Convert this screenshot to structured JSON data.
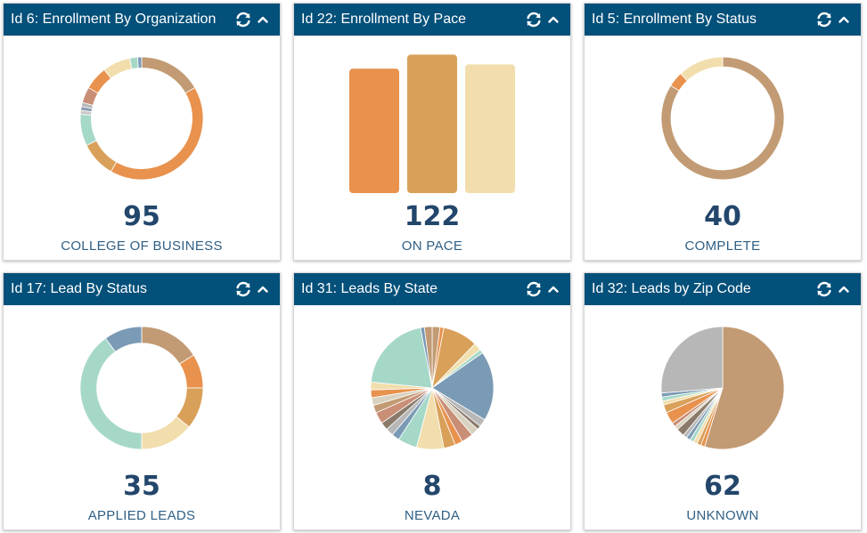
{
  "colors": {
    "header_bg": "#03507a",
    "value_text": "#23466b",
    "label_text": "#2f5f85",
    "palette": [
      "#c29b74",
      "#e8924e",
      "#d9a05a",
      "#f1deac",
      "#a6d8c8",
      "#7b9ab5",
      "#b7b7b7",
      "#c98e76"
    ]
  },
  "header_icons": [
    "refresh-icon",
    "chevron-up-icon"
  ],
  "widgets": [
    {
      "title": "Id 6: Enrollment By Organization",
      "value": "95",
      "label": "COLLEGE OF BUSINESS",
      "chart_data": {
        "type": "pie",
        "hole": 0.82,
        "slices": [
          {
            "value": 16,
            "color": "#c29b74"
          },
          {
            "value": 40,
            "color": "#e8924e"
          },
          {
            "value": 9,
            "color": "#d9a05a"
          },
          {
            "value": 8,
            "color": "#a6d8c8"
          },
          {
            "value": 1,
            "color": "#c9c9c9"
          },
          {
            "value": 1,
            "color": "#8d9fb1"
          },
          {
            "value": 1,
            "color": "#b7b7b7"
          },
          {
            "value": 4,
            "color": "#c98e76"
          },
          {
            "value": 6,
            "color": "#e8924e"
          },
          {
            "value": 7,
            "color": "#f1deac"
          },
          {
            "value": 2,
            "color": "#a6d8c8"
          },
          {
            "value": 1,
            "color": "#7b9ab5"
          }
        ]
      }
    },
    {
      "title": "Id 22: Enrollment By Pace",
      "value": "122",
      "label": "ON PACE",
      "chart_data": {
        "type": "bar",
        "values": [
          89,
          99,
          92
        ],
        "colors": [
          "#e8924e",
          "#d9a05a",
          "#f1deac"
        ],
        "ylim": [
          0,
          105
        ]
      }
    },
    {
      "title": "Id 5: Enrollment By Status",
      "value": "40",
      "label": "COMPLETE",
      "chart_data": {
        "type": "pie",
        "hole": 0.84,
        "slices": [
          {
            "value": 84,
            "color": "#c29b74"
          },
          {
            "value": 4,
            "color": "#e8924e"
          },
          {
            "value": 12,
            "color": "#f1deac"
          }
        ]
      }
    },
    {
      "title": "Id 17: Lead By Status",
      "value": "35",
      "label": "APPLIED LEADS",
      "chart_data": {
        "type": "pie",
        "hole": 0.73,
        "slices": [
          {
            "value": 16,
            "color": "#c29b74"
          },
          {
            "value": 9,
            "color": "#e8924e"
          },
          {
            "value": 11,
            "color": "#d9a05a"
          },
          {
            "value": 14,
            "color": "#f1deac"
          },
          {
            "value": 40,
            "color": "#a6d8c8"
          },
          {
            "value": 10,
            "color": "#7b9ab5"
          }
        ]
      }
    },
    {
      "title": "Id 31: Leads By State",
      "value": "8",
      "label": "NEVADA",
      "chart_data": {
        "type": "pie",
        "hole": 0,
        "slices": [
          {
            "value": 2,
            "color": "#c29b74"
          },
          {
            "value": 1,
            "color": "#e8924e"
          },
          {
            "value": 9,
            "color": "#d9a05a"
          },
          {
            "value": 2,
            "color": "#f1deac"
          },
          {
            "value": 1,
            "color": "#a6d8c8"
          },
          {
            "value": 18,
            "color": "#7b9ab5"
          },
          {
            "value": 2,
            "color": "#b7b7b7"
          },
          {
            "value": 1,
            "color": "#8a7a6a"
          },
          {
            "value": 2,
            "color": "#d9d2c0"
          },
          {
            "value": 3,
            "color": "#c98e76"
          },
          {
            "value": 2,
            "color": "#e8924e"
          },
          {
            "value": 3,
            "color": "#d9a05a"
          },
          {
            "value": 7,
            "color": "#f1deac"
          },
          {
            "value": 5,
            "color": "#a6d8c8"
          },
          {
            "value": 2,
            "color": "#7b9ab5"
          },
          {
            "value": 2,
            "color": "#b7b7b7"
          },
          {
            "value": 2,
            "color": "#8a7a6a"
          },
          {
            "value": 3,
            "color": "#c98e76"
          },
          {
            "value": 2,
            "color": "#c29b74"
          },
          {
            "value": 2,
            "color": "#d9d2c0"
          },
          {
            "value": 2,
            "color": "#e8924e"
          },
          {
            "value": 2,
            "color": "#f1deac"
          },
          {
            "value": 20,
            "color": "#a6d8c8"
          },
          {
            "value": 1,
            "color": "#7b9ab5"
          },
          {
            "value": 2,
            "color": "#c29b74"
          }
        ]
      }
    },
    {
      "title": "Id 32: Leads by Zip Code",
      "value": "62",
      "label": "UNKNOWN",
      "chart_data": {
        "type": "pie",
        "hole": 0,
        "slices": [
          {
            "value": 52,
            "color": "#c29b74"
          },
          {
            "value": 1,
            "color": "#e8924e"
          },
          {
            "value": 1,
            "color": "#d9a05a"
          },
          {
            "value": 1,
            "color": "#f1deac"
          },
          {
            "value": 1,
            "color": "#a6d8c8"
          },
          {
            "value": 1,
            "color": "#7b9ab5"
          },
          {
            "value": 1,
            "color": "#b7b7b7"
          },
          {
            "value": 2,
            "color": "#8a7a6a"
          },
          {
            "value": 1,
            "color": "#d9d2c0"
          },
          {
            "value": 1,
            "color": "#c98e76"
          },
          {
            "value": 3,
            "color": "#e8924e"
          },
          {
            "value": 2,
            "color": "#d9a05a"
          },
          {
            "value": 1,
            "color": "#f1deac"
          },
          {
            "value": 1,
            "color": "#a6d8c8"
          },
          {
            "value": 1,
            "color": "#7b9ab5"
          },
          {
            "value": 25,
            "color": "#b7b7b7"
          }
        ]
      }
    }
  ]
}
